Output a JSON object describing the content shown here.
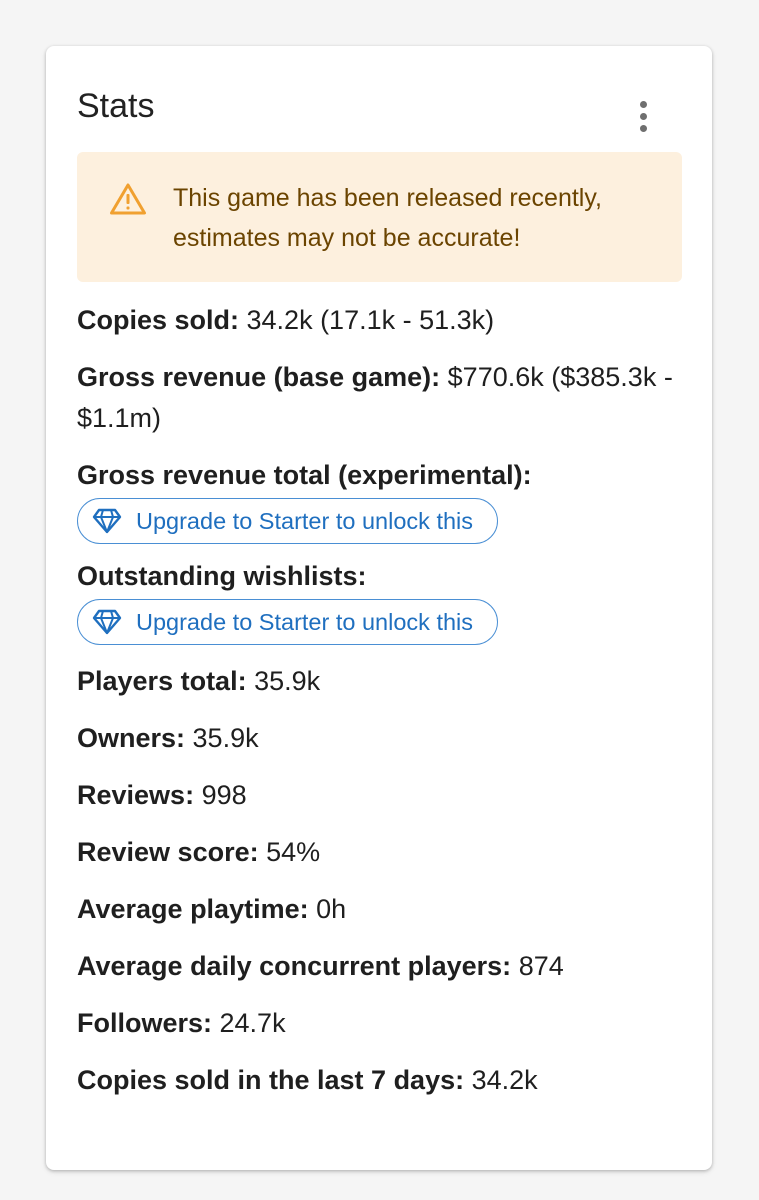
{
  "card": {
    "title": "Stats"
  },
  "alert": {
    "icon": "warning-icon",
    "text": "This game has been released recently, estimates may not be accurate!"
  },
  "stats": {
    "copies_sold": {
      "label": "Copies sold:",
      "value": " 34.2k (17.1k - 51.3k)"
    },
    "gross_revenue_base": {
      "label": "Gross revenue (base game):",
      "value": " $770.6k ($385.3k - $1.1m)"
    },
    "gross_revenue_total": {
      "label": "Gross revenue total (experimental):",
      "button": "Upgrade to Starter to unlock this"
    },
    "outstanding_wishlists": {
      "label": "Outstanding wishlists:",
      "button": "Upgrade to Starter to unlock this"
    },
    "players_total": {
      "label": "Players total:",
      "value": " 35.9k"
    },
    "owners": {
      "label": "Owners:",
      "value": " 35.9k"
    },
    "reviews": {
      "label": "Reviews:",
      "value": " 998"
    },
    "review_score": {
      "label": "Review score:",
      "value": " 54%"
    },
    "avg_playtime": {
      "label": "Average playtime:",
      "value": " 0h"
    },
    "avg_daily_ccu": {
      "label": "Average daily concurrent players:",
      "value": " 874"
    },
    "followers": {
      "label": "Followers:",
      "value": " 24.7k"
    },
    "copies_7d": {
      "label": "Copies sold in the last 7 days:",
      "value": " 34.2k"
    }
  },
  "colors": {
    "alert_bg": "#fdf0de",
    "alert_text": "#6b4400",
    "warning_icon": "#f0a030",
    "accent": "#1f6fbf"
  }
}
